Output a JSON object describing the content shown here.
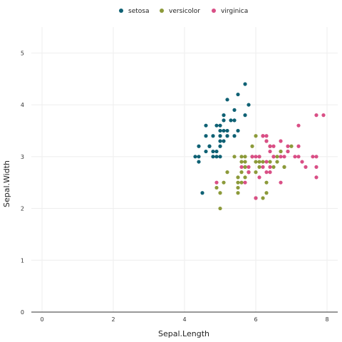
{
  "chart_data": {
    "type": "scatter",
    "title": "",
    "xlabel": "Sepal.Length",
    "ylabel": "Sepal.Width",
    "xlim": [
      -0.3,
      8.3
    ],
    "ylim": [
      0,
      5.5
    ],
    "x_ticks": [
      "0",
      "2",
      "4",
      "6",
      "8"
    ],
    "y_ticks": [
      "0",
      "1",
      "2",
      "3",
      "4",
      "5"
    ],
    "grid": true,
    "legend_position": "top",
    "series": [
      {
        "name": "setosa",
        "color": "#0f6174",
        "points": [
          [
            5.1,
            3.5
          ],
          [
            4.9,
            3.0
          ],
          [
            4.7,
            3.2
          ],
          [
            4.6,
            3.1
          ],
          [
            5.0,
            3.6
          ],
          [
            5.4,
            3.9
          ],
          [
            4.6,
            3.4
          ],
          [
            5.0,
            3.4
          ],
          [
            4.4,
            2.9
          ],
          [
            4.9,
            3.1
          ],
          [
            5.4,
            3.7
          ],
          [
            4.8,
            3.4
          ],
          [
            4.8,
            3.0
          ],
          [
            4.3,
            3.0
          ],
          [
            5.8,
            4.0
          ],
          [
            5.7,
            4.4
          ],
          [
            5.1,
            3.8
          ],
          [
            5.7,
            3.8
          ],
          [
            5.4,
            3.4
          ],
          [
            5.1,
            3.7
          ],
          [
            5.1,
            3.3
          ],
          [
            5.2,
            3.5
          ],
          [
            5.2,
            3.4
          ],
          [
            4.7,
            3.2
          ],
          [
            4.8,
            3.1
          ],
          [
            5.2,
            4.1
          ],
          [
            5.5,
            4.2
          ],
          [
            5.0,
            3.2
          ],
          [
            5.5,
            3.5
          ],
          [
            4.4,
            3.0
          ],
          [
            4.5,
            2.3
          ],
          [
            4.4,
            3.2
          ],
          [
            5.0,
            3.5
          ],
          [
            5.3,
            3.7
          ],
          [
            5.0,
            3.3
          ],
          [
            4.6,
            3.6
          ],
          [
            5.0,
            3.0
          ],
          [
            4.9,
            3.6
          ]
        ]
      },
      {
        "name": "versicolor",
        "color": "#8c9a3a",
        "points": [
          [
            7.0,
            3.2
          ],
          [
            6.4,
            3.2
          ],
          [
            6.9,
            3.1
          ],
          [
            5.5,
            2.3
          ],
          [
            6.5,
            2.8
          ],
          [
            5.7,
            2.8
          ],
          [
            6.3,
            3.3
          ],
          [
            4.9,
            2.4
          ],
          [
            6.6,
            2.9
          ],
          [
            5.2,
            2.7
          ],
          [
            5.0,
            2.0
          ],
          [
            5.9,
            3.0
          ],
          [
            6.0,
            2.2
          ],
          [
            6.1,
            2.9
          ],
          [
            5.6,
            2.9
          ],
          [
            6.7,
            3.1
          ],
          [
            5.6,
            3.0
          ],
          [
            5.8,
            2.7
          ],
          [
            6.2,
            2.2
          ],
          [
            5.6,
            2.5
          ],
          [
            5.9,
            3.2
          ],
          [
            6.1,
            2.8
          ],
          [
            6.3,
            2.5
          ],
          [
            6.4,
            2.9
          ],
          [
            6.8,
            2.8
          ],
          [
            6.0,
            2.9
          ],
          [
            5.7,
            2.6
          ],
          [
            5.5,
            2.4
          ],
          [
            5.8,
            2.7
          ],
          [
            6.0,
            2.7
          ],
          [
            5.4,
            3.0
          ],
          [
            6.0,
            3.4
          ],
          [
            6.7,
            3.1
          ],
          [
            6.3,
            2.3
          ],
          [
            5.5,
            2.5
          ],
          [
            5.5,
            2.6
          ],
          [
            6.1,
            3.0
          ],
          [
            5.0,
            2.3
          ],
          [
            5.6,
            2.7
          ],
          [
            5.7,
            3.0
          ],
          [
            5.7,
            2.9
          ],
          [
            6.2,
            2.9
          ],
          [
            5.1,
            2.5
          ],
          [
            5.7,
            2.8
          ],
          [
            6.6,
            3.0
          ],
          [
            6.8,
            2.8
          ]
        ]
      },
      {
        "name": "virginica",
        "color": "#d94f86",
        "points": [
          [
            6.3,
            3.3
          ],
          [
            5.8,
            2.7
          ],
          [
            7.1,
            3.0
          ],
          [
            6.3,
            2.9
          ],
          [
            6.5,
            3.0
          ],
          [
            7.6,
            3.0
          ],
          [
            4.9,
            2.5
          ],
          [
            7.3,
            2.9
          ],
          [
            6.7,
            2.5
          ],
          [
            7.2,
            3.6
          ],
          [
            6.5,
            3.2
          ],
          [
            6.4,
            2.7
          ],
          [
            6.8,
            3.0
          ],
          [
            5.7,
            2.5
          ],
          [
            5.8,
            2.8
          ],
          [
            6.4,
            3.2
          ],
          [
            7.7,
            3.8
          ],
          [
            7.7,
            2.6
          ],
          [
            6.0,
            2.2
          ],
          [
            6.9,
            3.2
          ],
          [
            5.6,
            2.8
          ],
          [
            7.7,
            2.8
          ],
          [
            6.3,
            2.7
          ],
          [
            6.7,
            3.3
          ],
          [
            7.2,
            3.2
          ],
          [
            6.2,
            2.8
          ],
          [
            6.1,
            3.0
          ],
          [
            7.2,
            3.0
          ],
          [
            7.4,
            2.8
          ],
          [
            7.9,
            3.8
          ],
          [
            6.4,
            2.8
          ],
          [
            6.1,
            2.6
          ],
          [
            7.7,
            3.0
          ],
          [
            6.3,
            3.4
          ],
          [
            6.0,
            3.0
          ],
          [
            6.9,
            3.1
          ],
          [
            5.9,
            3.0
          ],
          [
            6.5,
            3.0
          ],
          [
            6.2,
            3.4
          ],
          [
            6.4,
            3.1
          ],
          [
            6.2,
            3.4
          ],
          [
            6.7,
            3.0
          ]
        ]
      }
    ]
  }
}
